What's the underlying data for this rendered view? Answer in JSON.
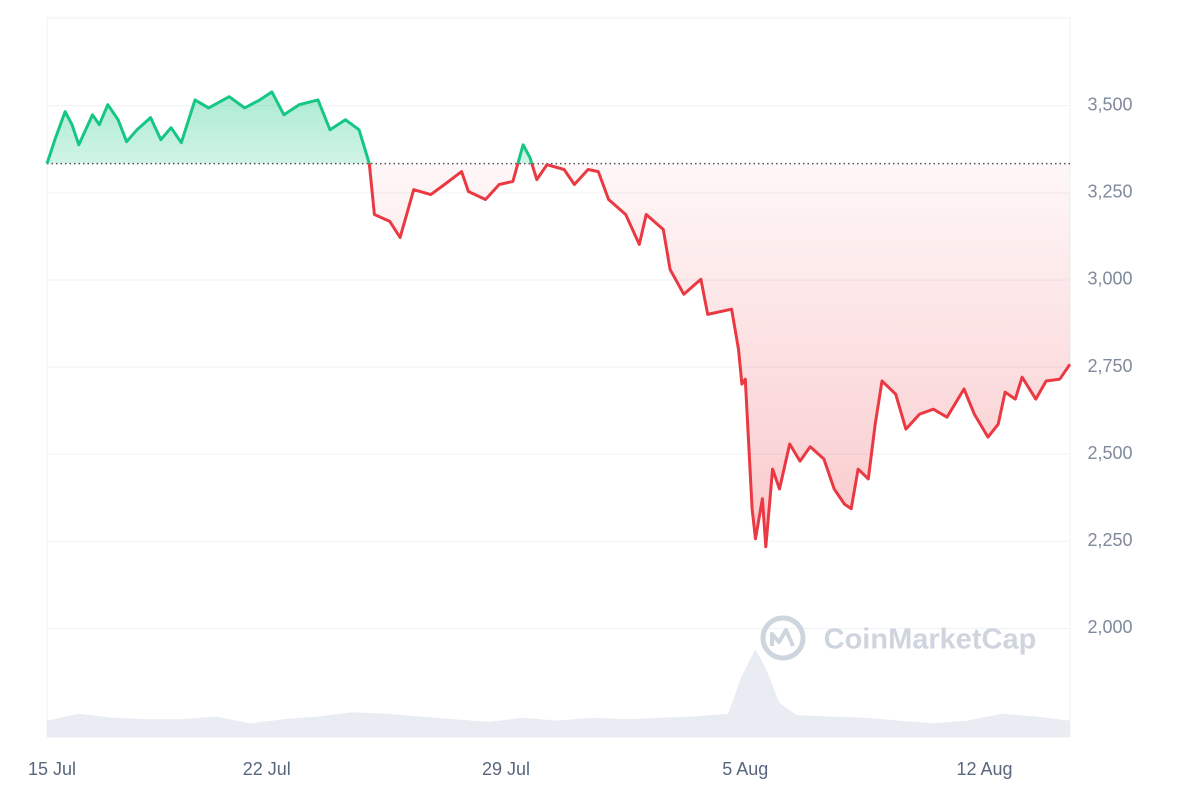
{
  "chart_data": {
    "type": "line",
    "x": [
      0.57,
      0.8,
      1.1,
      1.3,
      1.5,
      1.9,
      2.1,
      2.35,
      2.65,
      2.9,
      3.2,
      3.6,
      3.9,
      4.2,
      4.5,
      4.9,
      5.3,
      5.9,
      6.35,
      6.8,
      7.15,
      7.5,
      7.95,
      8.5,
      8.85,
      9.3,
      9.7,
      10.0,
      10.15,
      10.6,
      10.9,
      11.3,
      11.8,
      12.2,
      12.7,
      12.9,
      13.4,
      13.8,
      14.2,
      14.5,
      14.7,
      14.9,
      15.2,
      15.7,
      16.0,
      16.4,
      16.7,
      17.0,
      17.5,
      17.9,
      18.1,
      18.6,
      18.8,
      19.2,
      19.7,
      19.9,
      20.6,
      20.8,
      20.9,
      21.0,
      21.2,
      21.3,
      21.5,
      21.6,
      21.8,
      22.0,
      22.3,
      22.6,
      22.9,
      23.3,
      23.6,
      23.9,
      24.1,
      24.3,
      24.6,
      24.8,
      25.0,
      25.4,
      25.7,
      26.1,
      26.5,
      26.9,
      27.4,
      27.7,
      28.1,
      28.4,
      28.6,
      28.9,
      29.1,
      29.5,
      29.8,
      30.2,
      30.5
    ],
    "series": [
      {
        "values": [
          3334,
          3403,
          3483,
          3446,
          3388,
          3474,
          3446,
          3503,
          3460,
          3397,
          3431,
          3466,
          3403,
          3437,
          3394,
          3517,
          3494,
          3526,
          3494,
          3517,
          3540,
          3474,
          3503,
          3517,
          3431,
          3460,
          3431,
          3334,
          3188,
          3168,
          3122,
          3259,
          3245,
          3274,
          3311,
          3254,
          3231,
          3274,
          3283,
          3388,
          3351,
          3288,
          3331,
          3317,
          3274,
          3317,
          3311,
          3231,
          3188,
          3102,
          3188,
          3145,
          3030,
          2959,
          3002,
          2901,
          2916,
          2801,
          2701,
          2715,
          2343,
          2257,
          2372,
          2234,
          2457,
          2400,
          2529,
          2480,
          2521,
          2486,
          2400,
          2357,
          2343,
          2457,
          2429,
          2586,
          2710,
          2672,
          2572,
          2615,
          2629,
          2606,
          2687,
          2615,
          2549,
          2586,
          2678,
          2658,
          2721,
          2658,
          2710,
          2715,
          2758
        ]
      }
    ],
    "baseline": 3334,
    "up_color": "#16c784",
    "down_color": "#ea3943",
    "volume": {
      "color": "#e9edf3",
      "lim": [
        0,
        100
      ],
      "x": [
        0.57,
        1.5,
        2.5,
        3.5,
        4.5,
        5.5,
        6.5,
        7.5,
        8.5,
        9.5,
        10.5,
        11.5,
        12.5,
        13.5,
        14.5,
        15.5,
        16.5,
        17.5,
        18.5,
        19.5,
        20.5,
        20.9,
        21.3,
        21.6,
        22.0,
        22.5,
        23.5,
        24.5,
        25.5,
        26.5,
        27.5,
        28.5,
        29.5,
        30.5
      ],
      "values": [
        12,
        17,
        14,
        13,
        13,
        15,
        10,
        13,
        15,
        18,
        17,
        15,
        13,
        11,
        14,
        12,
        14,
        13,
        14,
        15,
        17,
        45,
        64,
        50,
        25,
        16,
        15,
        14,
        12,
        10,
        12,
        17,
        15,
        12
      ]
    },
    "watermark": "CoinMarketCap",
    "xlim": [
      0.57,
      30.5
    ],
    "xticks": [
      {
        "value": 0,
        "label": "15 Jul"
      },
      {
        "value": 7,
        "label": "22 Jul"
      },
      {
        "value": 14,
        "label": "29 Jul"
      },
      {
        "value": 21,
        "label": "5 Aug"
      },
      {
        "value": 28,
        "label": "12 Aug"
      }
    ],
    "ylim": [
      1688,
      3752
    ],
    "yticks": [
      {
        "value": 2000,
        "label": "2,000"
      },
      {
        "value": 2250,
        "label": "2,250"
      },
      {
        "value": 2500,
        "label": "2,500"
      },
      {
        "value": 2750,
        "label": "2,750"
      },
      {
        "value": 3000,
        "label": "3,000"
      },
      {
        "value": 3250,
        "label": "3,250"
      },
      {
        "value": 3500,
        "label": "3,500"
      }
    ],
    "grid": true
  }
}
